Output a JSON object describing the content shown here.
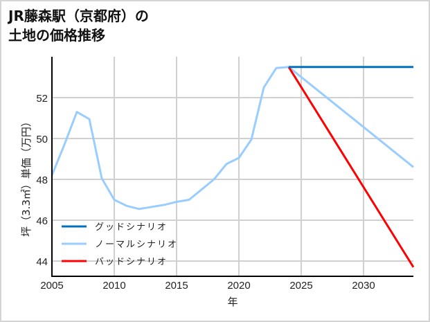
{
  "title": {
    "line1": "JR藤森駅（京都府）の",
    "line2": "土地の価格推移"
  },
  "chart_data": {
    "type": "line",
    "title": "JR藤森駅（京都府）の土地の価格推移",
    "xlabel": "年",
    "ylabel": "坪（3.3㎡）単価（万円）",
    "xlim": [
      2005,
      2034
    ],
    "ylim": [
      43.3,
      54.5
    ],
    "x_ticks": [
      "2005",
      "2010",
      "2015",
      "2020",
      "2025",
      "2030"
    ],
    "y_ticks": [
      "44",
      "46",
      "48",
      "50",
      "52"
    ],
    "grid": true,
    "legend_position": "lower left",
    "series": [
      {
        "name": "グッドシナリオ",
        "color": "#0070c0",
        "x": [
          2024,
          2034
        ],
        "values": [
          53.5,
          53.5
        ]
      },
      {
        "name": "ノーマルシナリオ",
        "color": "#99ccff",
        "x": [
          2005,
          2006,
          2007,
          2008,
          2009,
          2010,
          2011,
          2012,
          2013,
          2014,
          2015,
          2016,
          2017,
          2018,
          2019,
          2020,
          2021,
          2022,
          2023,
          2024,
          2034
        ],
        "values": [
          48.2,
          49.7,
          51.3,
          50.95,
          48.05,
          47.0,
          46.7,
          46.55,
          46.65,
          46.75,
          46.9,
          47.0,
          47.5,
          48.0,
          48.75,
          49.05,
          49.95,
          52.5,
          53.45,
          53.5,
          48.6
        ]
      },
      {
        "name": "バッドシナリオ",
        "color": "#ff0000",
        "x": [
          2024,
          2034
        ],
        "values": [
          53.5,
          43.7
        ]
      }
    ]
  }
}
